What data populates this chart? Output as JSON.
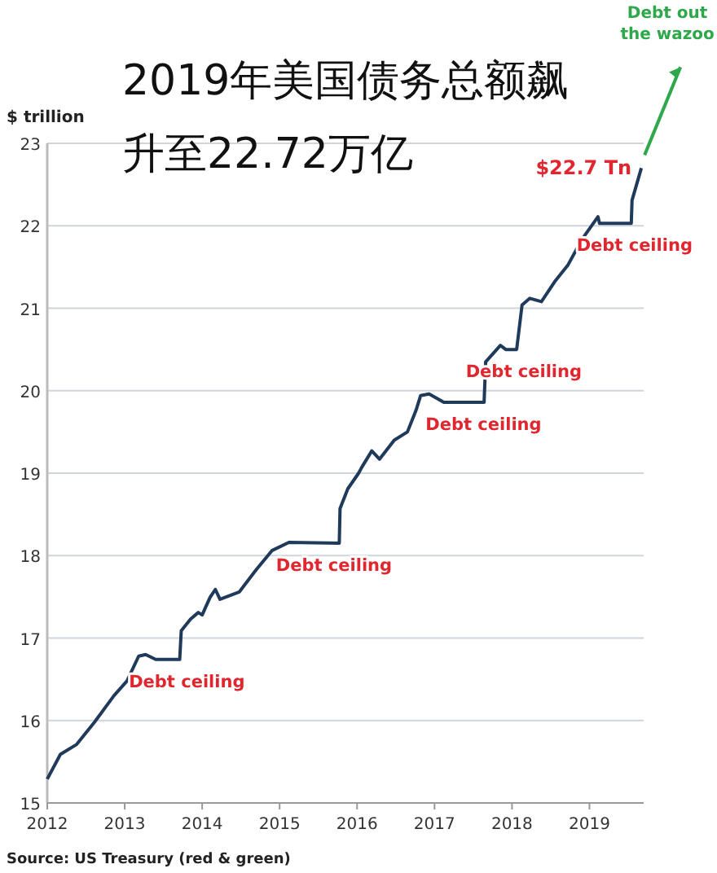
{
  "chart_data": {
    "type": "line",
    "title": "2019年美国债务总额飙升至22.72万亿",
    "ylabel": "$ trillion",
    "x": [
      2012,
      2012.17,
      2012.38,
      2012.61,
      2012.86,
      2013.03,
      2013.18,
      2013.27,
      2013.4,
      2013.71,
      2013.73,
      2013.85,
      2013.95,
      2014.0,
      2014.1,
      2014.17,
      2014.23,
      2014.48,
      2014.69,
      2014.9,
      2015.12,
      2015.77,
      2015.78,
      2015.88,
      2016.02,
      2016.06,
      2016.19,
      2016.29,
      2016.48,
      2016.65,
      2016.76,
      2016.82,
      2016.93,
      2017.12,
      2017.64,
      2017.66,
      2017.85,
      2017.92,
      2018.06,
      2018.13,
      2018.23,
      2018.38,
      2018.55,
      2018.72,
      2018.9,
      2019.11,
      2019.13,
      2019.54,
      2019.55,
      2019.67
    ],
    "series": [
      {
        "color": "#1f3a5a",
        "values": [
          15.29,
          15.59,
          15.71,
          15.98,
          16.3,
          16.48,
          16.78,
          16.8,
          16.74,
          16.74,
          17.09,
          17.23,
          17.31,
          17.28,
          17.49,
          17.59,
          17.47,
          17.56,
          17.82,
          18.06,
          18.16,
          18.15,
          18.57,
          18.81,
          19.0,
          19.07,
          19.27,
          19.17,
          19.4,
          19.5,
          19.76,
          19.94,
          19.96,
          19.86,
          19.86,
          20.35,
          20.55,
          20.5,
          20.5,
          21.04,
          21.12,
          21.08,
          21.32,
          21.52,
          21.83,
          22.11,
          22.03,
          22.03,
          22.31,
          22.7
        ]
      }
    ],
    "xlim": [
      2012,
      2019.7
    ],
    "xticks": [
      2012,
      2013,
      2014,
      2015,
      2016,
      2017,
      2018,
      2019
    ],
    "ylim": [
      15,
      23
    ],
    "yticks": [
      15,
      16,
      17,
      18,
      19,
      20,
      21,
      22,
      23
    ],
    "grid": "y",
    "marker": "none",
    "line_style": "solid",
    "annotations": [
      {
        "text": "Debt ceiling",
        "x": 2013.55,
        "y": 16.74
      },
      {
        "text": "Debt ceiling",
        "x": 2015.45,
        "y": 18.15
      },
      {
        "text": "Debt ceiling",
        "x": 2017.38,
        "y": 19.86
      },
      {
        "text": "Debt ceiling",
        "x": 2017.9,
        "y": 20.5
      },
      {
        "text": "Debt ceiling",
        "x": 2019.33,
        "y": 22.03
      },
      {
        "text": "$22.7 Tn",
        "x": 2019.67,
        "y": 22.7
      },
      "Debt out the wazoo",
      "Source: US Treasury (red & green)"
    ]
  }
}
